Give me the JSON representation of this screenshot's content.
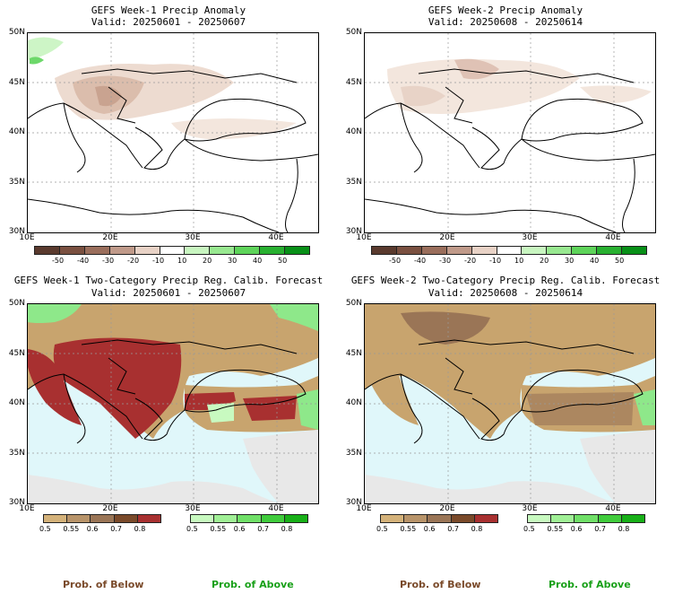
{
  "panels": {
    "p1": {
      "title": "GEFS Week-1 Precip Anomaly",
      "valid": "Valid: 20250601 - 20250607"
    },
    "p2": {
      "title": "GEFS Week-2 Precip Anomaly",
      "valid": "Valid: 20250608 - 20250614"
    },
    "p3": {
      "title": "GEFS Week-1 Two-Category Precip Reg. Calib. Forecast",
      "valid": "Valid: 20250601 - 20250607"
    },
    "p4": {
      "title": "GEFS Week-2 Two-Category Precip Reg. Calib. Forecast",
      "valid": "Valid: 20250608 - 20250614"
    }
  },
  "axes": {
    "lat_labels": [
      "50N",
      "45N",
      "40N",
      "35N",
      "30N"
    ],
    "lon_labels": [
      "10E",
      "20E",
      "30E",
      "40E"
    ]
  },
  "anomaly_legend": {
    "labels": [
      "-50",
      "-40",
      "-30",
      "-20",
      "-10",
      "10",
      "20",
      "30",
      "40",
      "50"
    ],
    "colors": [
      "#5a3a2e",
      "#7a5040",
      "#9a6e5c",
      "#c09a8a",
      "#e8d2c6",
      "#ffffff",
      "#c8f5c0",
      "#98e890",
      "#5ed45a",
      "#28b030",
      "#089018"
    ]
  },
  "below_legend": {
    "labels": [
      "0.5",
      "0.55",
      "0.6",
      "0.7",
      "0.8"
    ],
    "colors": [
      "#d4b27a",
      "#b8946a",
      "#9a7556",
      "#7a4a2a",
      "#a83030"
    ],
    "caption": "Prob. of Below"
  },
  "above_legend": {
    "labels": [
      "0.5",
      "0.55",
      "0.6",
      "0.7",
      "0.8"
    ],
    "colors": [
      "#c8fac0",
      "#a0f096",
      "#70e068",
      "#40cc3c",
      "#18b018"
    ],
    "caption": "Prob. of Above"
  },
  "colors": {
    "sea": "#e0f7fa",
    "land_masked": "#e8e8e8",
    "below_strong": "#a83030",
    "below": "#c8a46e",
    "above": "#8ee88a"
  }
}
